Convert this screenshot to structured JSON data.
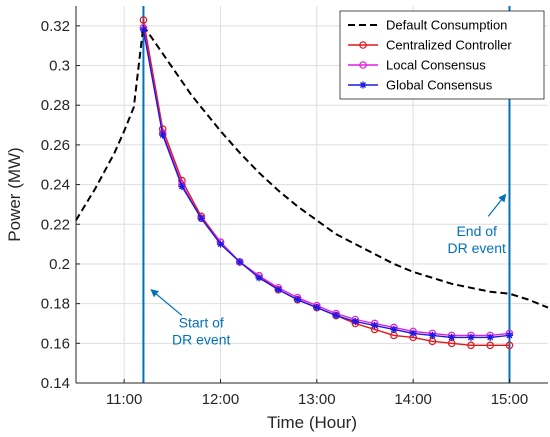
{
  "chart_data": {
    "type": "line",
    "title": "",
    "xlabel": "Time (Hour)",
    "ylabel": "Power (MW)",
    "xlim": [
      10.5,
      15.4
    ],
    "ylim": [
      0.14,
      0.33
    ],
    "grid": true,
    "legend_position": "top-right",
    "x_ticks": [
      {
        "value": 11,
        "label": "11:00"
      },
      {
        "value": 12,
        "label": "12:00"
      },
      {
        "value": 13,
        "label": "13:00"
      },
      {
        "value": 14,
        "label": "14:00"
      },
      {
        "value": 15,
        "label": "15:00"
      }
    ],
    "y_ticks": [
      {
        "value": 0.14,
        "label": "0.14"
      },
      {
        "value": 0.16,
        "label": "0.16"
      },
      {
        "value": 0.18,
        "label": "0.18"
      },
      {
        "value": 0.2,
        "label": "0.2"
      },
      {
        "value": 0.22,
        "label": "0.22"
      },
      {
        "value": 0.24,
        "label": "0.24"
      },
      {
        "value": 0.26,
        "label": "0.26"
      },
      {
        "value": 0.28,
        "label": "0.28"
      },
      {
        "value": 0.3,
        "label": "0.3"
      },
      {
        "value": 0.32,
        "label": "0.32"
      }
    ],
    "series": [
      {
        "name": "Default Consumption",
        "color": "#000000",
        "dash": "dashed",
        "marker": "none",
        "x": [
          10.5,
          10.6,
          10.7,
          10.8,
          10.9,
          11.0,
          11.1,
          11.2,
          11.3,
          11.4,
          11.5,
          11.6,
          11.7,
          11.8,
          11.9,
          12.0,
          12.2,
          12.4,
          12.6,
          12.8,
          13.0,
          13.2,
          13.4,
          13.6,
          13.8,
          14.0,
          14.2,
          14.4,
          14.6,
          14.8,
          15.0,
          15.2,
          15.4
        ],
        "y": [
          0.222,
          0.23,
          0.238,
          0.247,
          0.256,
          0.267,
          0.279,
          0.32,
          0.313,
          0.306,
          0.299,
          0.292,
          0.285,
          0.279,
          0.273,
          0.267,
          0.256,
          0.246,
          0.237,
          0.229,
          0.222,
          0.215,
          0.21,
          0.205,
          0.2,
          0.196,
          0.193,
          0.19,
          0.188,
          0.186,
          0.185,
          0.182,
          0.178
        ]
      },
      {
        "name": "Centralized Controller",
        "color": "#E3171B",
        "dash": "solid",
        "marker": "circle",
        "x": [
          11.2,
          11.4,
          11.6,
          11.8,
          12.0,
          12.2,
          12.4,
          12.6,
          12.8,
          13.0,
          13.2,
          13.4,
          13.6,
          13.8,
          14.0,
          14.2,
          14.4,
          14.6,
          14.8,
          15.0
        ],
        "y": [
          0.323,
          0.268,
          0.242,
          0.224,
          0.211,
          0.201,
          0.194,
          0.187,
          0.182,
          0.178,
          0.174,
          0.17,
          0.167,
          0.164,
          0.163,
          0.161,
          0.16,
          0.159,
          0.159,
          0.159
        ]
      },
      {
        "name": "Local Consensus",
        "color": "#E020E0",
        "dash": "solid",
        "marker": "circle",
        "x": [
          11.2,
          11.4,
          11.6,
          11.8,
          12.0,
          12.2,
          12.4,
          12.6,
          12.8,
          13.0,
          13.2,
          13.4,
          13.6,
          13.8,
          14.0,
          14.2,
          14.4,
          14.6,
          14.8,
          15.0
        ],
        "y": [
          0.319,
          0.266,
          0.24,
          0.223,
          0.211,
          0.201,
          0.194,
          0.188,
          0.183,
          0.179,
          0.175,
          0.172,
          0.17,
          0.168,
          0.166,
          0.165,
          0.164,
          0.164,
          0.164,
          0.165
        ]
      },
      {
        "name": "Global Consensus",
        "color": "#1A1AE0",
        "dash": "solid",
        "marker": "asterisk",
        "x": [
          11.2,
          11.4,
          11.6,
          11.8,
          12.0,
          12.2,
          12.4,
          12.6,
          12.8,
          13.0,
          13.2,
          13.4,
          13.6,
          13.8,
          14.0,
          14.2,
          14.4,
          14.6,
          14.8,
          15.0
        ],
        "y": [
          0.318,
          0.265,
          0.239,
          0.223,
          0.21,
          0.201,
          0.193,
          0.187,
          0.182,
          0.178,
          0.174,
          0.171,
          0.169,
          0.167,
          0.165,
          0.164,
          0.163,
          0.163,
          0.163,
          0.164
        ]
      }
    ],
    "event_lines": [
      {
        "x": 11.2,
        "color": "#0072BD"
      },
      {
        "x": 15.0,
        "color": "#0072BD"
      }
    ],
    "annotations": [
      {
        "lines": [
          "Start of",
          "DR event"
        ],
        "text_x": 11.8,
        "text_y": 0.168,
        "arrow_from": [
          11.6,
          0.174
        ],
        "arrow_to": [
          11.28,
          0.187
        ],
        "color": "#0072BD"
      },
      {
        "lines": [
          "End of",
          "DR event"
        ],
        "text_x": 14.66,
        "text_y": 0.214,
        "arrow_from": [
          14.78,
          0.224
        ],
        "arrow_to": [
          14.96,
          0.235
        ],
        "color": "#0072BD"
      }
    ]
  }
}
